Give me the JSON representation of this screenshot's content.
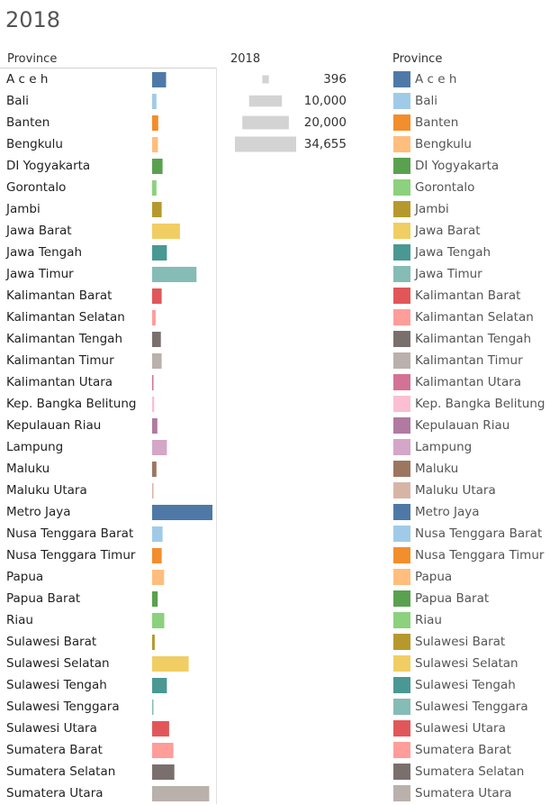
{
  "title": "2018",
  "headers": {
    "province": "Province",
    "size": "2018",
    "legend": "Province"
  },
  "chart_data": {
    "type": "bar",
    "orientation": "horizontal",
    "categories": [
      "A c e h",
      "Bali",
      "Banten",
      "Bengkulu",
      "DI Yogyakarta",
      "Gorontalo",
      "Jambi",
      "Jawa Barat",
      "Jawa Tengah",
      "Jawa Timur",
      "Kalimantan Barat",
      "Kalimantan Selatan",
      "Kalimantan Tengah",
      "Kalimantan Timur",
      "Kalimantan Utara",
      "Kep. Bangka Belitung",
      "Kepulauan Riau",
      "Lampung",
      "Maluku",
      "Maluku Utara",
      "Metro Jaya",
      "Nusa Tenggara Barat",
      "Nusa Tenggara Timur",
      "Papua",
      "Papua Barat",
      "Riau",
      "Sulawesi Barat",
      "Sulawesi Selatan",
      "Sulawesi Tengah",
      "Sulawesi Tenggara",
      "Sulawesi Utara",
      "Sumatera Barat",
      "Sumatera Selatan",
      "Sumatera Utara"
    ],
    "values": [
      8000,
      2500,
      3500,
      3300,
      6000,
      2500,
      5500,
      16000,
      8500,
      25500,
      5500,
      2000,
      5000,
      5500,
      700,
      1200,
      3000,
      8500,
      2500,
      600,
      34655,
      6000,
      5500,
      6900,
      3200,
      7000,
      1500,
      21000,
      8500,
      800,
      9800,
      12200,
      12800,
      32800
    ],
    "colors": [
      "#4e79a7",
      "#a0cbe8",
      "#f28e2b",
      "#ffbe7d",
      "#59a14f",
      "#8cd17d",
      "#b6992d",
      "#f1ce63",
      "#499894",
      "#86bcb6",
      "#e15759",
      "#ff9d9a",
      "#79706e",
      "#bab0ac",
      "#d37295",
      "#fabfd2",
      "#b07aa1",
      "#d4a6c8",
      "#9d7660",
      "#d7b5a6",
      "#4e79a7",
      "#a0cbe8",
      "#f28e2b",
      "#ffbe7d",
      "#59a14f",
      "#8cd17d",
      "#b6992d",
      "#f1ce63",
      "#499894",
      "#86bcb6",
      "#e15759",
      "#ff9d9a",
      "#79706e",
      "#bab0ac"
    ],
    "size_legend": {
      "title": "2018",
      "values": [
        396,
        10000,
        20000,
        34655
      ],
      "labels": [
        "396",
        "10,000",
        "20,000",
        "34,655"
      ],
      "color": "#d3d3d3"
    },
    "color_legend_title": "Province",
    "grid": false
  }
}
